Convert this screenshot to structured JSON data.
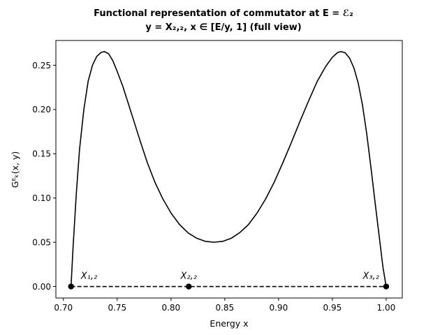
{
  "chart_data": {
    "type": "line",
    "title": "Functional representation of commutator at E = ℰ₂",
    "subtitle": "y = X₂,₂, x ∈ [E/y, 1] (full view)",
    "xlabel": "Energy x",
    "ylabel": "Gᴱₖ(x, y)",
    "xlim": [
      0.693,
      1.015
    ],
    "ylim": [
      -0.013,
      0.278
    ],
    "xticks": [
      0.7,
      0.75,
      0.8,
      0.85,
      0.9,
      0.95,
      1.0
    ],
    "xtick_labels": [
      "0.70",
      "0.75",
      "0.80",
      "0.85",
      "0.90",
      "0.95",
      "1.00"
    ],
    "yticks": [
      0.0,
      0.05,
      0.1,
      0.15,
      0.2,
      0.25
    ],
    "ytick_labels": [
      "0.00",
      "0.05",
      "0.10",
      "0.15",
      "0.20",
      "0.25"
    ],
    "grid": false,
    "series": [
      {
        "style": "solid",
        "color": "#000000",
        "points": [
          [
            0.7071,
            0.0
          ],
          [
            0.709,
            0.045
          ],
          [
            0.712,
            0.105
          ],
          [
            0.715,
            0.155
          ],
          [
            0.719,
            0.2
          ],
          [
            0.723,
            0.232
          ],
          [
            0.727,
            0.25
          ],
          [
            0.731,
            0.26
          ],
          [
            0.735,
            0.2645
          ],
          [
            0.738,
            0.2655
          ],
          [
            0.742,
            0.263
          ],
          [
            0.746,
            0.255
          ],
          [
            0.75,
            0.243
          ],
          [
            0.755,
            0.227
          ],
          [
            0.76,
            0.208
          ],
          [
            0.766,
            0.185
          ],
          [
            0.772,
            0.162
          ],
          [
            0.778,
            0.14
          ],
          [
            0.785,
            0.118
          ],
          [
            0.792,
            0.1
          ],
          [
            0.8,
            0.083
          ],
          [
            0.808,
            0.07
          ],
          [
            0.816,
            0.0605
          ],
          [
            0.824,
            0.0545
          ],
          [
            0.832,
            0.051
          ],
          [
            0.84,
            0.05
          ],
          [
            0.848,
            0.051
          ],
          [
            0.856,
            0.0545
          ],
          [
            0.864,
            0.061
          ],
          [
            0.872,
            0.07
          ],
          [
            0.88,
            0.083
          ],
          [
            0.888,
            0.099
          ],
          [
            0.896,
            0.118
          ],
          [
            0.904,
            0.14
          ],
          [
            0.912,
            0.163
          ],
          [
            0.92,
            0.187
          ],
          [
            0.928,
            0.21
          ],
          [
            0.936,
            0.232
          ],
          [
            0.944,
            0.249
          ],
          [
            0.95,
            0.259
          ],
          [
            0.955,
            0.2645
          ],
          [
            0.958,
            0.2655
          ],
          [
            0.962,
            0.264
          ],
          [
            0.966,
            0.258
          ],
          [
            0.97,
            0.247
          ],
          [
            0.974,
            0.23
          ],
          [
            0.978,
            0.205
          ],
          [
            0.982,
            0.172
          ],
          [
            0.986,
            0.133
          ],
          [
            0.99,
            0.092
          ],
          [
            0.994,
            0.052
          ],
          [
            0.997,
            0.022
          ],
          [
            1.0,
            0.0
          ]
        ]
      },
      {
        "style": "dashed",
        "color": "#000000",
        "points": [
          [
            0.7071,
            0.0
          ],
          [
            1.0,
            0.0
          ]
        ]
      }
    ],
    "markers": [
      {
        "x": 0.7071,
        "y": 0.0,
        "label": "X₁,₂",
        "label_side": "right"
      },
      {
        "x": 0.8165,
        "y": 0.0,
        "label": "X₂,₂",
        "label_side": "center"
      },
      {
        "x": 1.0,
        "y": 0.0,
        "label": "X₃,₂",
        "label_side": "left"
      }
    ]
  }
}
